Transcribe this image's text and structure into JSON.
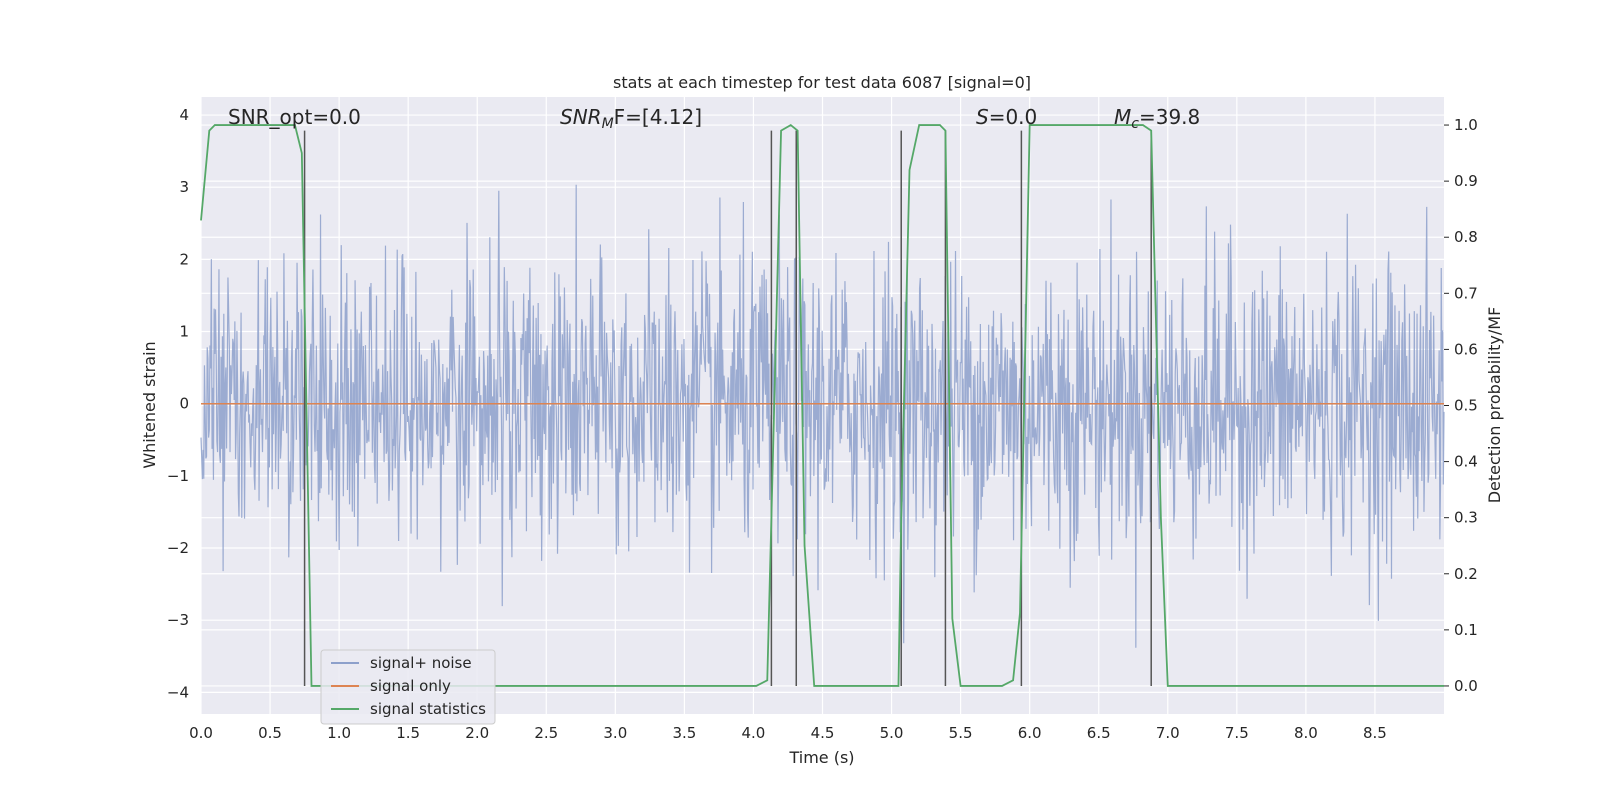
{
  "chart_data": {
    "type": "line",
    "title": "stats at each timestep for test data 6087 [signal=0]",
    "xlabel": "Time (s)",
    "ylabel": "Whitened strain",
    "y2label": "Detection probability/MF",
    "xlim": [
      0,
      9
    ],
    "ylim": [
      -4.3,
      4.25
    ],
    "y2lim": [
      -0.05,
      1.05
    ],
    "xticks": [
      0.0,
      0.5,
      1.0,
      1.5,
      2.0,
      2.5,
      3.0,
      3.5,
      4.0,
      4.5,
      5.0,
      5.5,
      6.0,
      6.5,
      7.0,
      7.5,
      8.0,
      8.5
    ],
    "yticks": [
      -4,
      -3,
      -2,
      -1,
      0,
      1,
      2,
      3,
      4
    ],
    "y2ticks": [
      0.0,
      0.1,
      0.2,
      0.3,
      0.4,
      0.5,
      0.6,
      0.7,
      0.8,
      0.9,
      1.0
    ],
    "grid": true,
    "legend_position": "lower-left",
    "annotations": {
      "snr_opt": "SNR_opt=0.0",
      "snr_mf_sym": "SNR",
      "snr_mf_sub": "M",
      "snr_mf_rest": "F=[4.12]",
      "s_sym": "S",
      "s_rest": "=0.0",
      "mc_sym": "M",
      "mc_sub": "c",
      "mc_rest": "=39.8"
    },
    "series": [
      {
        "name": "signal+ noise",
        "color": "#8da0cb",
        "description": "whitened noise, roughly gaussian with std ~1, spanning about -4 to 4",
        "std": 1.0,
        "n_samples": 1800
      },
      {
        "name": "signal only",
        "color": "#dd8452",
        "y_constant": 0.0
      },
      {
        "name": "signal statistics",
        "color": "#55a868",
        "axis": "right",
        "x": [
          0.0,
          0.06,
          0.1,
          0.68,
          0.73,
          0.8,
          0.85,
          4.02,
          4.1,
          4.13,
          4.2,
          4.27,
          4.32,
          4.37,
          4.44,
          4.52,
          5.05,
          5.07,
          5.13,
          5.2,
          5.35,
          5.39,
          5.44,
          5.5,
          5.8,
          5.88,
          5.93,
          6.0,
          6.82,
          6.88,
          6.95,
          7.0,
          9.0
        ],
        "y": [
          0.83,
          0.99,
          1.0,
          1.0,
          0.95,
          0.0,
          0.0,
          0.0,
          0.01,
          0.3,
          0.99,
          1.0,
          0.99,
          0.25,
          0.0,
          0.0,
          0.0,
          0.3,
          0.92,
          1.0,
          1.0,
          0.99,
          0.12,
          0.0,
          0.0,
          0.01,
          0.13,
          1.0,
          1.0,
          0.99,
          0.3,
          0.0,
          0.0
        ]
      }
    ],
    "vlines": [
      {
        "x": 0.75,
        "ymax": 0.99
      },
      {
        "x": 4.13,
        "ymax": 0.99
      },
      {
        "x": 4.31,
        "ymax": 0.99
      },
      {
        "x": 5.07,
        "ymax": 0.99
      },
      {
        "x": 5.39,
        "ymax": 0.99
      },
      {
        "x": 5.94,
        "ymax": 0.99
      },
      {
        "x": 6.88,
        "ymax": 0.99
      }
    ],
    "colors": {
      "axes_bg": "#eaeaf2",
      "grid": "#ffffff",
      "vline": "#555555"
    }
  }
}
